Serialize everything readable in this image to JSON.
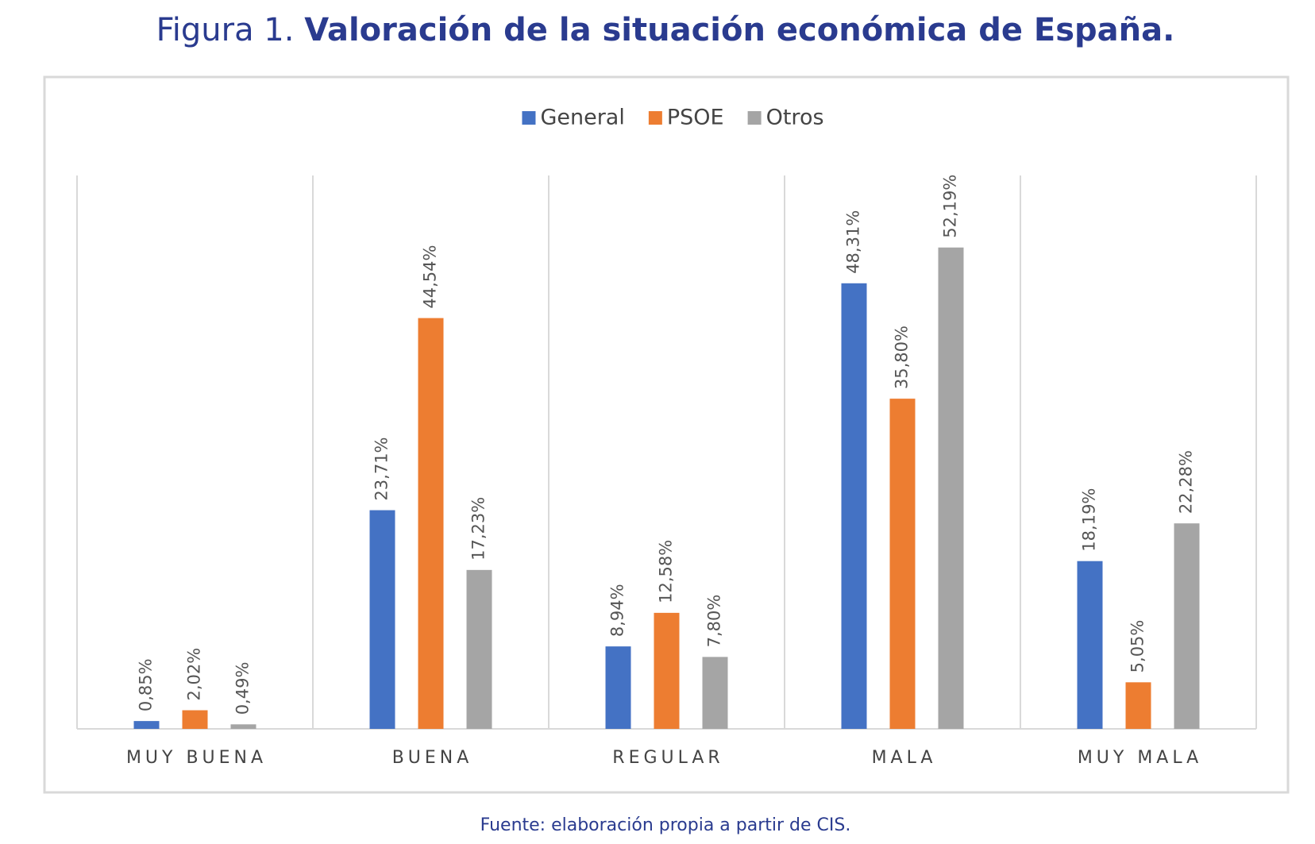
{
  "chart_data": {
    "type": "bar",
    "title_prefix": "Figura 1.",
    "title": "Valoración de la situación económica de España.",
    "source": "Fuente: elaboración propia a partir de CIS.",
    "categories": [
      "MUY BUENA",
      "BUENA",
      "REGULAR",
      "MALA",
      "MUY MALA"
    ],
    "series": [
      {
        "name": "General",
        "color": "#4472c4",
        "values": [
          0.85,
          23.71,
          8.94,
          48.31,
          18.19
        ],
        "value_labels": [
          "0,85%",
          "23,71%",
          "8,94%",
          "48,31%",
          "18,19%"
        ]
      },
      {
        "name": "PSOE",
        "color": "#ed7d31",
        "values": [
          2.02,
          44.54,
          12.58,
          35.8,
          5.05
        ],
        "value_labels": [
          "2,02%",
          "44,54%",
          "12,58%",
          "35,80%",
          "5,05%"
        ]
      },
      {
        "name": "Otros",
        "color": "#a5a5a5",
        "values": [
          0.49,
          17.23,
          7.8,
          52.19,
          22.28
        ],
        "value_labels": [
          "0,49%",
          "17,23%",
          "7,80%",
          "52,19%",
          "22,28%"
        ]
      }
    ],
    "ylim": [
      0,
      60
    ],
    "legend": "top"
  }
}
